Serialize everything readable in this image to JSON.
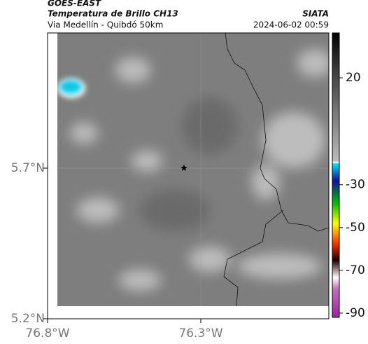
{
  "header": {
    "source": "GOES-EAST",
    "product": "Temperatura de Brillo CH13",
    "brand": "SIATA",
    "location": "Via Medellín - Quibdó 50km",
    "timestamp": "2024-06-02 00:59"
  },
  "axes": {
    "lat_labels": [
      "5.7°N",
      "5.2°N"
    ],
    "lon_labels": [
      "76.8°W",
      "76.3°W"
    ]
  },
  "colorbar": {
    "lim": [
      41,
      -92
    ],
    "ticks": [
      20,
      -30,
      -50,
      -70,
      -90
    ]
  }
}
